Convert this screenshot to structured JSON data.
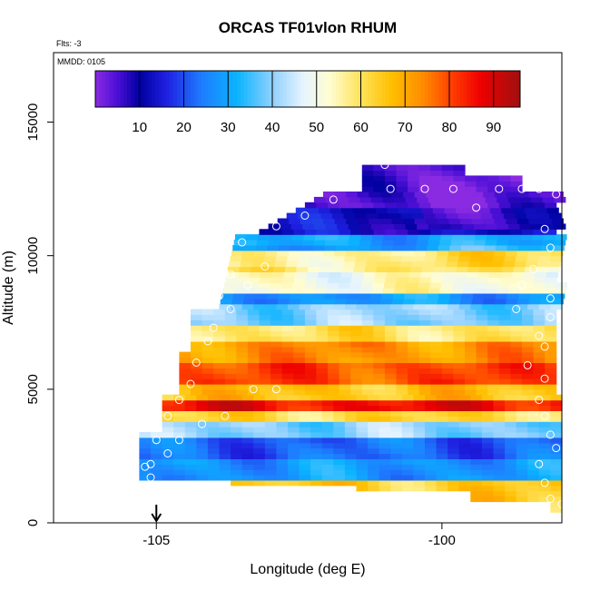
{
  "title": "ORCAS TF01vlon RHUM",
  "flts_label": "Flts: -3",
  "date_label": "MMDD: 0105",
  "chart_data": {
    "type": "heatmap",
    "title": "ORCAS TF01vlon RHUM",
    "xlabel": "Longitude (deg E)",
    "ylabel": "Altitude (m)",
    "xlim": [
      -106.8,
      -97.9
    ],
    "ylim": [
      0,
      17600
    ],
    "x_ticks": [
      -105,
      -100
    ],
    "y_ticks": [
      0,
      5000,
      10000,
      15000
    ],
    "marker_longitude": -105,
    "colorbar": {
      "min": 0,
      "max": 96,
      "ticks": [
        10,
        20,
        30,
        40,
        50,
        60,
        70,
        80,
        90
      ],
      "stops": [
        {
          "v": 0,
          "color": "#8a2be2"
        },
        {
          "v": 5,
          "color": "#4b0fd6"
        },
        {
          "v": 10,
          "color": "#0000a0"
        },
        {
          "v": 16,
          "color": "#1f1fe0"
        },
        {
          "v": 24,
          "color": "#1e7cff"
        },
        {
          "v": 32,
          "color": "#0ab4ff"
        },
        {
          "v": 40,
          "color": "#8fd0ff"
        },
        {
          "v": 47,
          "color": "#e6f4ff"
        },
        {
          "v": 53,
          "color": "#fffdd0"
        },
        {
          "v": 60,
          "color": "#ffe35a"
        },
        {
          "v": 67,
          "color": "#ffbf00"
        },
        {
          "v": 74,
          "color": "#ff8c00"
        },
        {
          "v": 81,
          "color": "#ff3a00"
        },
        {
          "v": 87,
          "color": "#ee0000"
        },
        {
          "v": 96,
          "color": "#a01010"
        }
      ]
    },
    "grid": false,
    "legend": "top (colorbar)",
    "cell_width_deg": 0.2,
    "cell_height_m": 200,
    "profile_bands": [
      {
        "z0": 200,
        "z1": 1600,
        "value": 64
      },
      {
        "z0": 1600,
        "z1": 2400,
        "value": 28
      },
      {
        "z0": 2400,
        "z1": 3200,
        "value": 22
      },
      {
        "z0": 3200,
        "z1": 3800,
        "value": 40
      },
      {
        "z0": 3800,
        "z1": 4200,
        "value": 62
      },
      {
        "z0": 4200,
        "z1": 4700,
        "value": 86
      },
      {
        "z0": 4700,
        "z1": 5300,
        "value": 66
      },
      {
        "z0": 5300,
        "z1": 6000,
        "value": 80
      },
      {
        "z0": 6000,
        "z1": 6900,
        "value": 73
      },
      {
        "z0": 6900,
        "z1": 7500,
        "value": 60
      },
      {
        "z0": 7500,
        "z1": 8200,
        "value": 40
      },
      {
        "z0": 8200,
        "z1": 8600,
        "value": 28
      },
      {
        "z0": 8600,
        "z1": 9400,
        "value": 52
      },
      {
        "z0": 9400,
        "z1": 10300,
        "value": 58
      },
      {
        "z0": 10300,
        "z1": 10900,
        "value": 30
      },
      {
        "z0": 10900,
        "z1": 11800,
        "value": 12
      },
      {
        "z0": 11800,
        "z1": 13400,
        "value": 3
      }
    ],
    "observation_points": [
      {
        "lon": -105.1,
        "alt": 1700
      },
      {
        "lon": -105.1,
        "alt": 2200
      },
      {
        "lon": -105.0,
        "alt": 3100
      },
      {
        "lon": -104.8,
        "alt": 4000
      },
      {
        "lon": -104.6,
        "alt": 4600
      },
      {
        "lon": -104.4,
        "alt": 5200
      },
      {
        "lon": -104.3,
        "alt": 6000
      },
      {
        "lon": -104.1,
        "alt": 6800
      },
      {
        "lon": -104.0,
        "alt": 7300
      },
      {
        "lon": -103.7,
        "alt": 8000
      },
      {
        "lon": -103.9,
        "alt": 8500
      },
      {
        "lon": -103.4,
        "alt": 8900
      },
      {
        "lon": -103.7,
        "alt": 9300
      },
      {
        "lon": -103.1,
        "alt": 9600
      },
      {
        "lon": -103.5,
        "alt": 10500
      },
      {
        "lon": -102.9,
        "alt": 11100
      },
      {
        "lon": -102.4,
        "alt": 11500
      },
      {
        "lon": -101.9,
        "alt": 12100
      },
      {
        "lon": -101.5,
        "alt": 12600
      },
      {
        "lon": -101.0,
        "alt": 13400
      },
      {
        "lon": -100.3,
        "alt": 12500
      },
      {
        "lon": -99.8,
        "alt": 12500
      },
      {
        "lon": -99.4,
        "alt": 11800
      },
      {
        "lon": -99.0,
        "alt": 12500
      },
      {
        "lon": -98.6,
        "alt": 12500
      },
      {
        "lon": -98.3,
        "alt": 12500
      },
      {
        "lon": -98.0,
        "alt": 12300
      },
      {
        "lon": -98.2,
        "alt": 11000
      },
      {
        "lon": -98.1,
        "alt": 10300
      },
      {
        "lon": -98.4,
        "alt": 9500
      },
      {
        "lon": -98.6,
        "alt": 8900
      },
      {
        "lon": -98.1,
        "alt": 8400
      },
      {
        "lon": -98.7,
        "alt": 8000
      },
      {
        "lon": -98.1,
        "alt": 7700
      },
      {
        "lon": -98.3,
        "alt": 7000
      },
      {
        "lon": -98.2,
        "alt": 6600
      },
      {
        "lon": -98.5,
        "alt": 5900
      },
      {
        "lon": -98.2,
        "alt": 5400
      },
      {
        "lon": -98.3,
        "alt": 4600
      },
      {
        "lon": -98.2,
        "alt": 4000
      },
      {
        "lon": -98.1,
        "alt": 3300
      },
      {
        "lon": -98.0,
        "alt": 2800
      },
      {
        "lon": -98.3,
        "alt": 2200
      },
      {
        "lon": -98.2,
        "alt": 1500
      },
      {
        "lon": -98.1,
        "alt": 900
      },
      {
        "lon": -97.9,
        "alt": 700
      },
      {
        "lon": -104.2,
        "alt": 3700
      },
      {
        "lon": -103.8,
        "alt": 4000
      },
      {
        "lon": -104.6,
        "alt": 3100
      },
      {
        "lon": -104.8,
        "alt": 2600
      },
      {
        "lon": -105.2,
        "alt": 2100
      },
      {
        "lon": -103.3,
        "alt": 5000
      },
      {
        "lon": -102.9,
        "alt": 5000
      },
      {
        "lon": -100.9,
        "alt": 12500
      }
    ]
  }
}
